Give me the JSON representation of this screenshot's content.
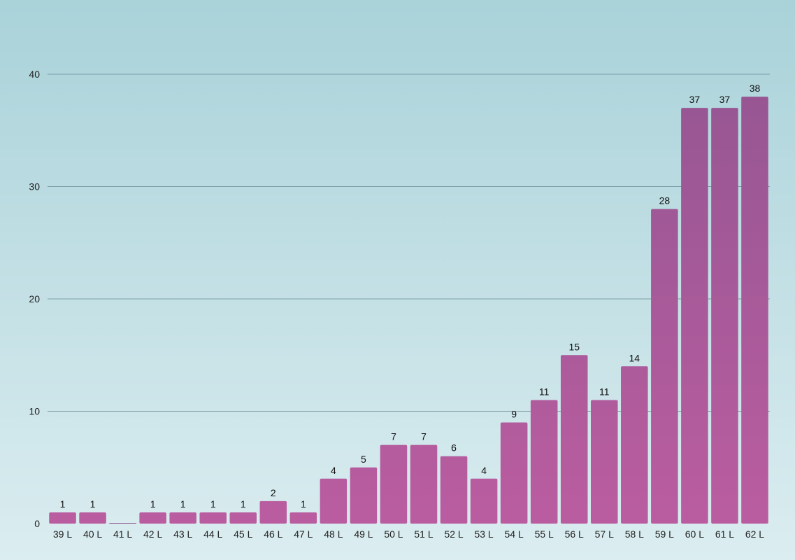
{
  "chart_data": {
    "type": "bar",
    "title": "",
    "xlabel": "",
    "ylabel": "",
    "ylim": [
      0,
      40
    ],
    "yticks": [
      0,
      10,
      20,
      30,
      40
    ],
    "grid": true,
    "legend": "none",
    "categories": [
      "39 L",
      "40 L",
      "41 L",
      "42 L",
      "43 L",
      "44 L",
      "45 L",
      "46 L",
      "47 L",
      "48 L",
      "49 L",
      "50 L",
      "51 L",
      "52 L",
      "53 L",
      "54 L",
      "55 L",
      "56 L",
      "57 L",
      "58 L",
      "59 L",
      "60 L",
      "61 L",
      "62 L"
    ],
    "values": [
      1,
      1,
      0,
      1,
      1,
      1,
      1,
      2,
      1,
      4,
      5,
      7,
      7,
      6,
      4,
      9,
      11,
      15,
      11,
      14,
      28,
      37,
      37,
      38
    ],
    "data_labels": [
      "1",
      "1",
      "",
      "1",
      "1",
      "1",
      "1",
      "2",
      "1",
      "4",
      "5",
      "7",
      "7",
      "6",
      "4",
      "9",
      "11",
      "15",
      "11",
      "14",
      "28",
      "37",
      "37",
      "38"
    ],
    "colors": {
      "bar_top": "#8f5590",
      "bar_bottom": "#ba5da0",
      "grid": "#7a9fa6",
      "background_top": "#a9d2d9",
      "background_bottom": "#dbedf0"
    }
  }
}
